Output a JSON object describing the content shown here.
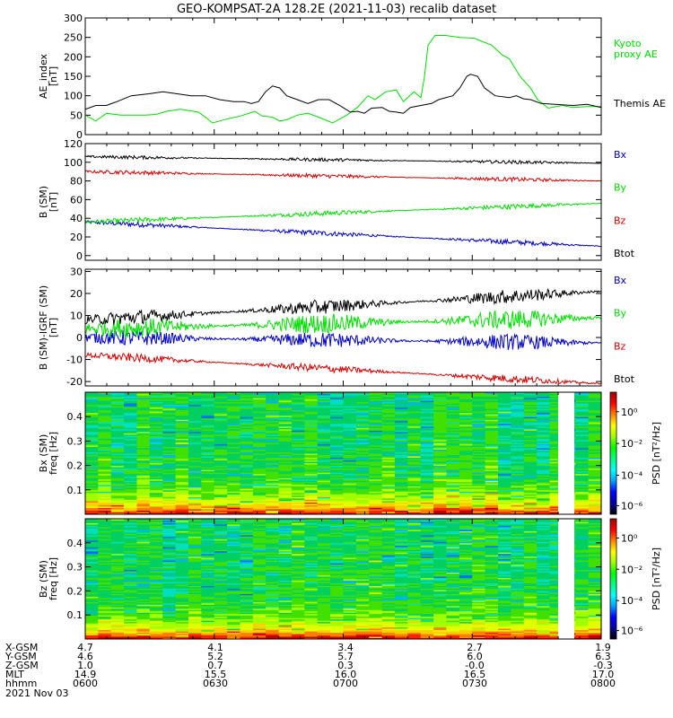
{
  "title": "GEO-KOMPSAT-2A 128.2E (2021-11-03) recalib dataset",
  "colors": {
    "black": "#000000",
    "red": "#d40000",
    "green": "#00dd00",
    "blue": "#0000c8"
  },
  "chart_data": [
    {
      "type": "line",
      "id": "ae",
      "ylabel": [
        "AE_index",
        "[nT]"
      ],
      "ylim": [
        0,
        300
      ],
      "yticks": [
        0,
        50,
        100,
        150,
        200,
        250,
        300
      ],
      "grid": false,
      "legend": "right",
      "x_hhmm": [
        "0600",
        "0630",
        "0700",
        "0730",
        "0800"
      ],
      "series": [
        {
          "name": "Kyoto\nproxy AE",
          "color": "#00dd00",
          "points": [
            [
              0,
              50
            ],
            [
              3,
              35
            ],
            [
              6,
              55
            ],
            [
              10,
              50
            ],
            [
              14,
              50
            ],
            [
              17,
              50
            ],
            [
              20,
              52
            ],
            [
              23,
              60
            ],
            [
              27,
              65
            ],
            [
              32,
              58
            ],
            [
              34,
              45
            ],
            [
              36,
              30
            ],
            [
              40,
              40
            ],
            [
              44,
              48
            ],
            [
              48,
              60
            ],
            [
              50,
              48
            ],
            [
              53,
              45
            ],
            [
              55,
              35
            ],
            [
              57,
              38
            ],
            [
              60,
              50
            ],
            [
              63,
              55
            ],
            [
              66,
              45
            ],
            [
              70,
              30
            ],
            [
              74,
              50
            ],
            [
              77,
              70
            ],
            [
              80,
              100
            ],
            [
              82,
              90
            ],
            [
              85,
              110
            ],
            [
              88,
              115
            ],
            [
              90,
              85
            ],
            [
              93,
              110
            ],
            [
              95,
              95
            ],
            [
              96,
              150
            ],
            [
              97,
              230
            ],
            [
              99,
              255
            ],
            [
              102,
              255
            ],
            [
              106,
              250
            ],
            [
              110,
              248
            ],
            [
              115,
              230
            ],
            [
              118,
              205
            ],
            [
              120,
              195
            ],
            [
              123,
              150
            ],
            [
              126,
              120
            ],
            [
              128,
              90
            ],
            [
              131,
              68
            ],
            [
              135,
              75
            ],
            [
              138,
              70
            ],
            [
              142,
              72
            ],
            [
              146,
              72
            ]
          ]
        },
        {
          "name": "Themis AE",
          "color": "#000000",
          "points": [
            [
              0,
              65
            ],
            [
              3,
              75
            ],
            [
              6,
              75
            ],
            [
              9,
              85
            ],
            [
              13,
              100
            ],
            [
              18,
              105
            ],
            [
              22,
              110
            ],
            [
              26,
              105
            ],
            [
              30,
              100
            ],
            [
              34,
              100
            ],
            [
              38,
              90
            ],
            [
              42,
              85
            ],
            [
              45,
              85
            ],
            [
              47,
              80
            ],
            [
              49,
              85
            ],
            [
              51,
              110
            ],
            [
              53,
              125
            ],
            [
              55,
              120
            ],
            [
              57,
              100
            ],
            [
              60,
              90
            ],
            [
              63,
              80
            ],
            [
              66,
              90
            ],
            [
              69,
              90
            ],
            [
              72,
              75
            ],
            [
              75,
              58
            ],
            [
              77,
              60
            ],
            [
              79,
              55
            ],
            [
              81,
              68
            ],
            [
              84,
              70
            ],
            [
              86,
              60
            ],
            [
              88,
              58
            ],
            [
              90,
              55
            ],
            [
              92,
              70
            ],
            [
              95,
              75
            ],
            [
              98,
              80
            ],
            [
              100,
              90
            ],
            [
              104,
              100
            ],
            [
              106,
              120
            ],
            [
              108,
              150
            ],
            [
              109,
              155
            ],
            [
              111,
              150
            ],
            [
              113,
              120
            ],
            [
              116,
              100
            ],
            [
              120,
              95
            ],
            [
              122,
              100
            ],
            [
              124,
              92
            ],
            [
              126,
              90
            ],
            [
              129,
              80
            ],
            [
              133,
              78
            ],
            [
              138,
              75
            ],
            [
              142,
              78
            ],
            [
              146,
              70
            ]
          ]
        }
      ]
    },
    {
      "type": "line",
      "id": "bgsm",
      "ylabel": [
        "B (SM)",
        "[nT]"
      ],
      "ylim": [
        -5,
        120
      ],
      "yticks": [
        0,
        20,
        40,
        60,
        80,
        100,
        120
      ],
      "grid": false,
      "legend": "right",
      "series": [
        {
          "name": "Bx",
          "color": "#0000c8",
          "y0": 36,
          "y1": 10,
          "noise": 1.5
        },
        {
          "name": "By",
          "color": "#00dd00",
          "y0": 36,
          "y1": 56,
          "noise": 1.5
        },
        {
          "name": "Bz",
          "color": "#d40000",
          "y0": 90,
          "y1": 80,
          "noise": 1.2
        },
        {
          "name": "Btot",
          "color": "#000000",
          "y0": 106,
          "y1": 99,
          "noise": 1.0
        }
      ]
    },
    {
      "type": "line",
      "id": "bigrf",
      "ylabel": [
        "B (SM)-IGRF (SM)",
        "[nT]"
      ],
      "ylim": [
        -22,
        31
      ],
      "yticks": [
        -20,
        -10,
        0,
        10,
        20,
        30
      ],
      "grid": false,
      "legend": "right",
      "series": [
        {
          "name": "Bx",
          "color": "#0000c8",
          "y0": 0,
          "y1": -2.5,
          "noise": 2.0
        },
        {
          "name": "By",
          "color": "#00dd00",
          "y0": 4,
          "y1": 9,
          "noise": 2.5
        },
        {
          "name": "Bz",
          "color": "#d40000",
          "y0": -8,
          "y1": -21,
          "noise": 1.0
        },
        {
          "name": "Btot",
          "color": "#000000",
          "y0": 8,
          "y1": 21,
          "noise": 1.8
        }
      ]
    },
    {
      "type": "heatmap",
      "id": "bx_spec",
      "ylabel": [
        "Bx (SM)",
        "freq [Hz]"
      ],
      "ylim": [
        0,
        0.5
      ],
      "yticks": [
        0.1,
        0.2,
        0.3,
        0.4
      ],
      "colorbar_label": "PSD [nT²/Hz]",
      "colorbar_ticks": [
        "10⁰",
        "10⁻²",
        "10⁻⁴",
        "10⁻⁶"
      ],
      "data_gap_minutes": [
        126,
        131
      ]
    },
    {
      "type": "heatmap",
      "id": "bz_spec",
      "ylabel": [
        "Bz (SM)",
        "freq [Hz]"
      ],
      "ylim": [
        0,
        0.5
      ],
      "yticks": [
        0.1,
        0.2,
        0.3,
        0.4
      ],
      "colorbar_label": "PSD [nT²/Hz]",
      "colorbar_ticks": [
        "10⁰",
        "10⁻²",
        "10⁻⁴",
        "10⁻⁶"
      ],
      "data_gap_minutes": [
        126,
        131
      ]
    }
  ],
  "ephemeris": {
    "labels": [
      "X-GSM",
      "Y-GSM",
      "Z-GSM",
      "MLT",
      "hhmm"
    ],
    "columns": [
      [
        "4.7",
        "4.6",
        "1.0",
        "14.9",
        "0600"
      ],
      [
        "4.1",
        "5.2",
        "0.7",
        "15.5",
        "0630"
      ],
      [
        "3.4",
        "5.7",
        "0.3",
        "16.0",
        "0700"
      ],
      [
        "2.7",
        "6.0",
        "-0.0",
        "16.5",
        "0730"
      ],
      [
        "1.9",
        "6.3",
        "-0.3",
        "17.0",
        "0800"
      ]
    ],
    "date": "2021 Nov 03"
  }
}
